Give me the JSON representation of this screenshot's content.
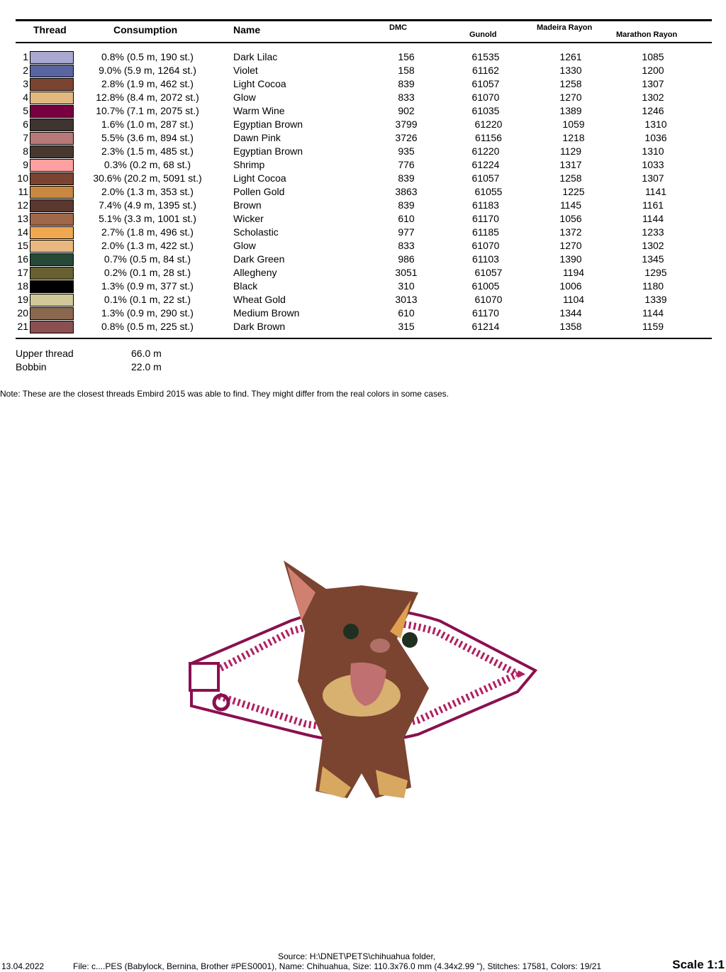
{
  "headers": {
    "thread": "Thread",
    "consumption": "Consumption",
    "name": "Name",
    "dmc": "DMC",
    "gunold": "Gunold",
    "madeira": "Madeira Rayon",
    "marathon": "Marathon Rayon"
  },
  "threads": [
    {
      "n": "1",
      "color": "#a8a8d0",
      "cons": "0.8% (0.5 m, 190 st.)",
      "name": "Dark Lilac",
      "dmc": "156",
      "gunold": "61535",
      "madeira": "1261",
      "marathon": "1085"
    },
    {
      "n": "2",
      "color": "#5a64a0",
      "cons": "9.0% (5.9 m, 1264 st.)",
      "name": "Violet",
      "dmc": "158",
      "gunold": "61162",
      "madeira": "1330",
      "marathon": "1200"
    },
    {
      "n": "3",
      "color": "#7a4430",
      "cons": "2.8% (1.9 m, 462 st.)",
      "name": "Light Cocoa",
      "dmc": "839",
      "gunold": "61057",
      "madeira": "1258",
      "marathon": "1307"
    },
    {
      "n": "4",
      "color": "#e0b880",
      "cons": "12.8% (8.4 m, 2072 st.)",
      "name": "Glow",
      "dmc": "833",
      "gunold": "61070",
      "madeira": "1270",
      "marathon": "1302"
    },
    {
      "n": "5",
      "color": "#780040",
      "cons": "10.7% (7.1 m, 2075 st.)",
      "name": "Warm Wine",
      "dmc": "902",
      "gunold": "61035",
      "madeira": "1389",
      "marathon": "1246"
    },
    {
      "n": "6",
      "color": "#403430",
      "cons": "1.6% (1.0 m, 287 st.)",
      "name": "Egyptian Brown",
      "dmc": "3799",
      "gunold": "61220",
      "madeira": "1059",
      "marathon": "1310"
    },
    {
      "n": "7",
      "color": "#b87878",
      "cons": "5.5% (3.6 m, 894 st.)",
      "name": "Dawn Pink",
      "dmc": "3726",
      "gunold": "61156",
      "madeira": "1218",
      "marathon": "1036"
    },
    {
      "n": "8",
      "color": "#483830",
      "cons": "2.3% (1.5 m, 485 st.)",
      "name": "Egyptian Brown",
      "dmc": "935",
      "gunold": "61220",
      "madeira": "1129",
      "marathon": "1310"
    },
    {
      "n": "9",
      "color": "#ffa0a0",
      "cons": "0.3% (0.2 m, 68 st.)",
      "name": "Shrimp",
      "dmc": "776",
      "gunold": "61224",
      "madeira": "1317",
      "marathon": "1033"
    },
    {
      "n": "10",
      "color": "#7a4430",
      "cons": "30.6% (20.2 m, 5091 st.)",
      "name": "Light Cocoa",
      "dmc": "839",
      "gunold": "61057",
      "madeira": "1258",
      "marathon": "1307"
    },
    {
      "n": "11",
      "color": "#c88840",
      "cons": "2.0% (1.3 m, 353 st.)",
      "name": "Pollen Gold",
      "dmc": "3863",
      "gunold": "61055",
      "madeira": "1225",
      "marathon": "1141"
    },
    {
      "n": "12",
      "color": "#5a3830",
      "cons": "7.4% (4.9 m, 1395 st.)",
      "name": "Brown",
      "dmc": "839",
      "gunold": "61183",
      "madeira": "1145",
      "marathon": "1161"
    },
    {
      "n": "13",
      "color": "#a06848",
      "cons": "5.1% (3.3 m, 1001 st.)",
      "name": "Wicker",
      "dmc": "610",
      "gunold": "61170",
      "madeira": "1056",
      "marathon": "1144"
    },
    {
      "n": "14",
      "color": "#f0a850",
      "cons": "2.7% (1.8 m, 496 st.)",
      "name": "Scholastic",
      "dmc": "977",
      "gunold": "61185",
      "madeira": "1372",
      "marathon": "1233"
    },
    {
      "n": "15",
      "color": "#e8b880",
      "cons": "2.0% (1.3 m, 422 st.)",
      "name": "Glow",
      "dmc": "833",
      "gunold": "61070",
      "madeira": "1270",
      "marathon": "1302"
    },
    {
      "n": "16",
      "color": "#284838",
      "cons": "0.7% (0.5 m, 84 st.)",
      "name": "Dark Green",
      "dmc": "986",
      "gunold": "61103",
      "madeira": "1390",
      "marathon": "1345"
    },
    {
      "n": "17",
      "color": "#686030",
      "cons": "0.2% (0.1 m, 28 st.)",
      "name": "Allegheny",
      "dmc": "3051",
      "gunold": "61057",
      "madeira": "1194",
      "marathon": "1295"
    },
    {
      "n": "18",
      "color": "#000000",
      "cons": "1.3% (0.9 m, 377 st.)",
      "name": "Black",
      "dmc": "310",
      "gunold": "61005",
      "madeira": "1006",
      "marathon": "1180"
    },
    {
      "n": "19",
      "color": "#d0c898",
      "cons": "0.1% (0.1 m, 22 st.)",
      "name": "Wheat Gold",
      "dmc": "3013",
      "gunold": "61070",
      "madeira": "1104",
      "marathon": "1339"
    },
    {
      "n": "20",
      "color": "#8a6850",
      "cons": "1.3% (0.9 m, 290 st.)",
      "name": "Medium Brown",
      "dmc": "610",
      "gunold": "61170",
      "madeira": "1344",
      "marathon": "1144"
    },
    {
      "n": "21",
      "color": "#8a5050",
      "cons": "0.8% (0.5 m, 225 st.)",
      "name": "Dark Brown",
      "dmc": "315",
      "gunold": "61214",
      "madeira": "1358",
      "marathon": "1159"
    }
  ],
  "totals": {
    "upper_label": "Upper thread",
    "upper_value": "66.0 m",
    "bobbin_label": "Bobbin",
    "bobbin_value": "22.0 m"
  },
  "note": "Note: These are the closest threads Embird 2015 was able to find. They might differ from the real colors in some cases.",
  "footer": {
    "date": "13.04.2022",
    "source": "Source: H:\\DNET\\PETS\\chihuahua folder,",
    "file": "File: c....PES (Babylock, Bernina, Brother #PES0001), Name: Chihuahua, Size: 110.3x76.0 mm (4.34x2.99 \"), Stitches: 17581, Colors: 19/21",
    "scale": "Scale 1:1"
  }
}
